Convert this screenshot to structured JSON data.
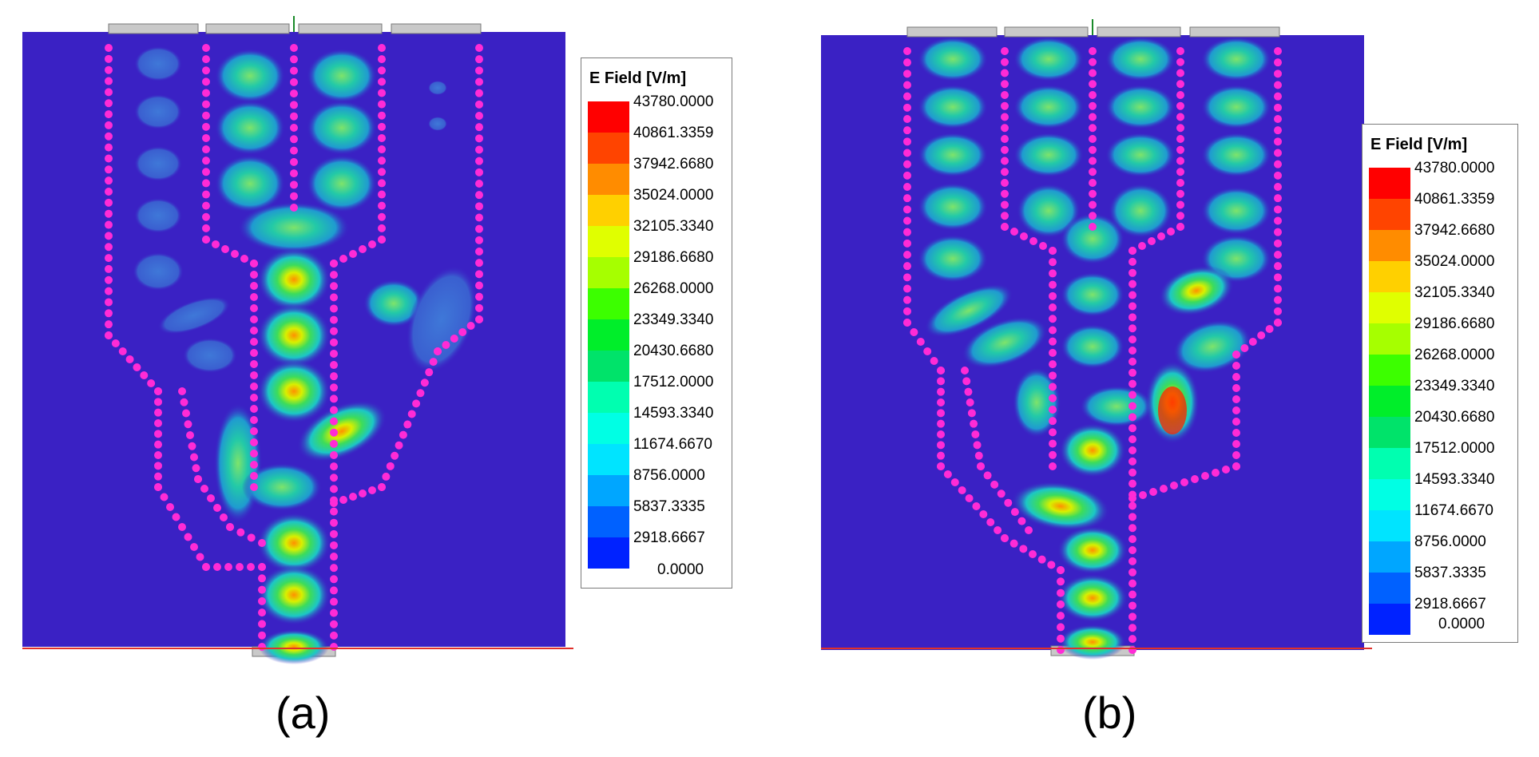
{
  "panels": [
    {
      "caption": "(a)",
      "legend": {
        "title": "E Field [V/m]",
        "values": [
          "43780.0000",
          "40861.3359",
          "37942.6680",
          "35024.0000",
          "32105.3340",
          "29186.6680",
          "26268.0000",
          "23349.3340",
          "20430.6680",
          "17512.0000",
          "14593.3340",
          "11674.6670",
          "8756.0000",
          "5837.3335",
          "2918.6667",
          "0.0000"
        ],
        "colors": [
          "#ff0000",
          "#ff4400",
          "#ff8c00",
          "#ffd000",
          "#e0ff00",
          "#a6ff00",
          "#3cff00",
          "#00ee2a",
          "#00e36a",
          "#00ffb0",
          "#00ffe4",
          "#00e4ff",
          "#00a6ff",
          "#0061ff",
          "#0022ff"
        ]
      }
    },
    {
      "caption": "(b)",
      "legend": {
        "title": "E Field [V/m]",
        "values": [
          "43780.0000",
          "40861.3359",
          "37942.6680",
          "35024.0000",
          "32105.3340",
          "29186.6680",
          "26268.0000",
          "23349.3340",
          "20430.6680",
          "17512.0000",
          "14593.3340",
          "11674.6670",
          "8756.0000",
          "5837.3335",
          "2918.6667",
          "0.0000"
        ],
        "colors": [
          "#ff0000",
          "#ff4400",
          "#ff8c00",
          "#ffd000",
          "#e0ff00",
          "#a6ff00",
          "#3cff00",
          "#00ee2a",
          "#00e36a",
          "#00ffb0",
          "#00ffe4",
          "#00e4ff",
          "#00a6ff",
          "#0061ff",
          "#0022ff"
        ]
      }
    }
  ],
  "colors": {
    "background_field": "#3a21c4",
    "via": "#ff2bd6",
    "port": "#c9c9c9"
  }
}
